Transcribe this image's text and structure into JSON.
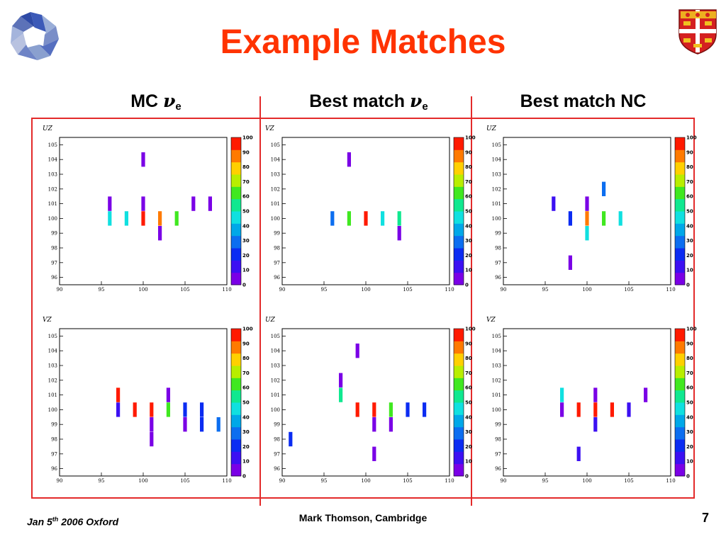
{
  "title": "Example Matches",
  "columns": [
    {
      "label": "MC ",
      "nu": "ν",
      "sub": "e"
    },
    {
      "label": "Best match ",
      "nu": "ν",
      "sub": "e"
    },
    {
      "label": "Best match NC",
      "nu": "",
      "sub": ""
    }
  ],
  "footer": {
    "left_pre": "Jan 5",
    "left_sup": "th",
    "left_post": " 2006 Oxford",
    "center": "Mark Thomson, Cambridge",
    "page": "7"
  },
  "colors": {
    "accent": "#ff3300",
    "frame": "#e32a2a"
  },
  "colorbar": {
    "ticks": [
      0,
      10,
      20,
      30,
      40,
      50,
      60,
      70,
      80,
      90,
      100
    ],
    "colors": [
      "#7a00e6",
      "#3c10f2",
      "#0b2cf2",
      "#0c6ef0",
      "#00a8e8",
      "#10e0e0",
      "#10e890",
      "#40e820",
      "#b8ee00",
      "#ffd000",
      "#ff7a00",
      "#ff1a00"
    ]
  },
  "chart_data": [
    {
      "type": "heatmap",
      "plot_label": "UZ",
      "xlim": [
        90,
        110
      ],
      "ylim": [
        95.5,
        105.5
      ],
      "xticks": [
        90,
        95,
        100,
        105,
        110
      ],
      "yticks": [
        96,
        97,
        98,
        99,
        100,
        101,
        102,
        103,
        104,
        105
      ],
      "cells": [
        {
          "x": 100,
          "y": 104,
          "v": 3
        },
        {
          "x": 96,
          "y": 101,
          "v": 5
        },
        {
          "x": 96,
          "y": 100,
          "v": 44
        },
        {
          "x": 98,
          "y": 100,
          "v": 48
        },
        {
          "x": 100,
          "y": 101,
          "v": 8
        },
        {
          "x": 100,
          "y": 100,
          "v": 97
        },
        {
          "x": 102,
          "y": 100,
          "v": 86
        },
        {
          "x": 104,
          "y": 100,
          "v": 62
        },
        {
          "x": 102,
          "y": 99,
          "v": 3
        },
        {
          "x": 106,
          "y": 101,
          "v": 3
        },
        {
          "x": 108,
          "y": 101,
          "v": 3
        }
      ]
    },
    {
      "type": "heatmap",
      "plot_label": "VZ",
      "xlim": [
        90,
        110
      ],
      "ylim": [
        95.5,
        105.5
      ],
      "xticks": [
        90,
        95,
        100,
        105,
        110
      ],
      "yticks": [
        96,
        97,
        98,
        99,
        100,
        101,
        102,
        103,
        104,
        105
      ],
      "cells": [
        {
          "x": 98,
          "y": 104,
          "v": 3
        },
        {
          "x": 96,
          "y": 100,
          "v": 30
        },
        {
          "x": 98,
          "y": 100,
          "v": 62
        },
        {
          "x": 100,
          "y": 100,
          "v": 97
        },
        {
          "x": 102,
          "y": 100,
          "v": 44
        },
        {
          "x": 104,
          "y": 100,
          "v": 55
        },
        {
          "x": 104,
          "y": 99,
          "v": 3
        }
      ]
    },
    {
      "type": "heatmap",
      "plot_label": "UZ",
      "xlim": [
        90,
        110
      ],
      "ylim": [
        95.5,
        105.5
      ],
      "xticks": [
        90,
        95,
        100,
        105,
        110
      ],
      "yticks": [
        96,
        97,
        98,
        99,
        100,
        101,
        102,
        103,
        104,
        105
      ],
      "cells": [
        {
          "x": 102,
          "y": 102,
          "v": 28
        },
        {
          "x": 96,
          "y": 101,
          "v": 14
        },
        {
          "x": 100,
          "y": 101,
          "v": 5
        },
        {
          "x": 98,
          "y": 100,
          "v": 20
        },
        {
          "x": 100,
          "y": 100,
          "v": 88
        },
        {
          "x": 102,
          "y": 100,
          "v": 66
        },
        {
          "x": 104,
          "y": 100,
          "v": 48
        },
        {
          "x": 100,
          "y": 99,
          "v": 44
        },
        {
          "x": 98,
          "y": 97,
          "v": 3
        }
      ]
    },
    {
      "type": "heatmap",
      "plot_label": "VZ",
      "xlim": [
        90,
        110
      ],
      "ylim": [
        95.5,
        105.5
      ],
      "xticks": [
        90,
        95,
        100,
        105,
        110
      ],
      "yticks": [
        96,
        97,
        98,
        99,
        100,
        101,
        102,
        103,
        104,
        105
      ],
      "cells": [
        {
          "x": 97,
          "y": 101,
          "v": 97
        },
        {
          "x": 97,
          "y": 100,
          "v": 14
        },
        {
          "x": 99,
          "y": 100,
          "v": 97
        },
        {
          "x": 101,
          "y": 100,
          "v": 97
        },
        {
          "x": 101,
          "y": 99,
          "v": 3
        },
        {
          "x": 101,
          "y": 98,
          "v": 3
        },
        {
          "x": 103,
          "y": 101,
          "v": 5
        },
        {
          "x": 103,
          "y": 100,
          "v": 62
        },
        {
          "x": 105,
          "y": 100,
          "v": 20
        },
        {
          "x": 105,
          "y": 99,
          "v": 5
        },
        {
          "x": 107,
          "y": 100,
          "v": 20
        },
        {
          "x": 107,
          "y": 99,
          "v": 20
        },
        {
          "x": 109,
          "y": 99,
          "v": 28
        }
      ]
    },
    {
      "type": "heatmap",
      "plot_label": "UZ",
      "xlim": [
        90,
        110
      ],
      "ylim": [
        95.5,
        105.5
      ],
      "xticks": [
        90,
        95,
        100,
        105,
        110
      ],
      "yticks": [
        96,
        97,
        98,
        99,
        100,
        101,
        102,
        103,
        104,
        105
      ],
      "cells": [
        {
          "x": 99,
          "y": 104,
          "v": 5
        },
        {
          "x": 97,
          "y": 102,
          "v": 5
        },
        {
          "x": 97,
          "y": 101,
          "v": 58
        },
        {
          "x": 99,
          "y": 100,
          "v": 97
        },
        {
          "x": 101,
          "y": 100,
          "v": 97
        },
        {
          "x": 103,
          "y": 100,
          "v": 60
        },
        {
          "x": 105,
          "y": 100,
          "v": 20
        },
        {
          "x": 107,
          "y": 100,
          "v": 22
        },
        {
          "x": 101,
          "y": 99,
          "v": 3
        },
        {
          "x": 103,
          "y": 99,
          "v": 5
        },
        {
          "x": 91,
          "y": 98,
          "v": 20
        },
        {
          "x": 101,
          "y": 97,
          "v": 3
        }
      ]
    },
    {
      "type": "heatmap",
      "plot_label": "VZ",
      "xlim": [
        90,
        110
      ],
      "ylim": [
        95.5,
        105.5
      ],
      "xticks": [
        90,
        95,
        100,
        105,
        110
      ],
      "yticks": [
        96,
        97,
        98,
        99,
        100,
        101,
        102,
        103,
        104,
        105
      ],
      "cells": [
        {
          "x": 97,
          "y": 101,
          "v": 48
        },
        {
          "x": 97,
          "y": 100,
          "v": 5
        },
        {
          "x": 99,
          "y": 100,
          "v": 97
        },
        {
          "x": 101,
          "y": 101,
          "v": 5
        },
        {
          "x": 101,
          "y": 100,
          "v": 97
        },
        {
          "x": 101,
          "y": 99,
          "v": 14
        },
        {
          "x": 103,
          "y": 100,
          "v": 97
        },
        {
          "x": 105,
          "y": 100,
          "v": 14
        },
        {
          "x": 107,
          "y": 101,
          "v": 5
        },
        {
          "x": 99,
          "y": 97,
          "v": 10
        }
      ]
    }
  ]
}
